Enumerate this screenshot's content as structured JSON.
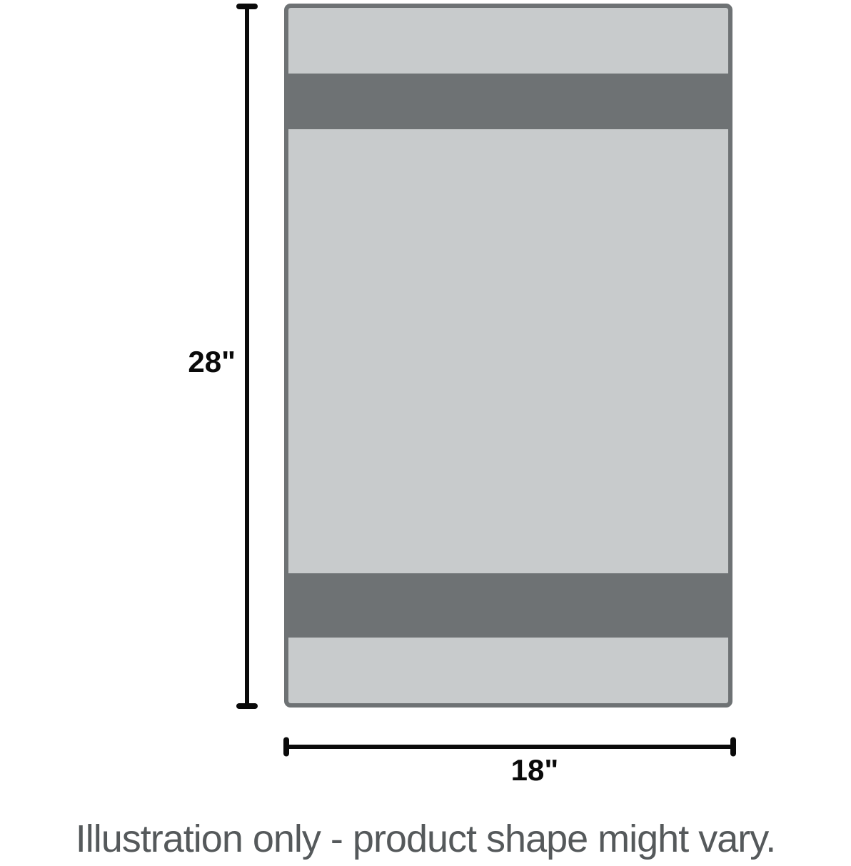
{
  "figure": {
    "height_label": "28\"",
    "width_label": "18\"",
    "caption": "Illustration only - product shape might vary."
  },
  "towel": {
    "stripe_pattern": [
      "light-band",
      "dark-stripe",
      "light-body",
      "dark-stripe",
      "light-band"
    ]
  },
  "colors": {
    "background": "#ffffff",
    "towel_light": "#c8cbcc",
    "towel_dark": "#6e7274",
    "dimension_line": "#0a0a0a",
    "caption_text": "#55595b"
  }
}
